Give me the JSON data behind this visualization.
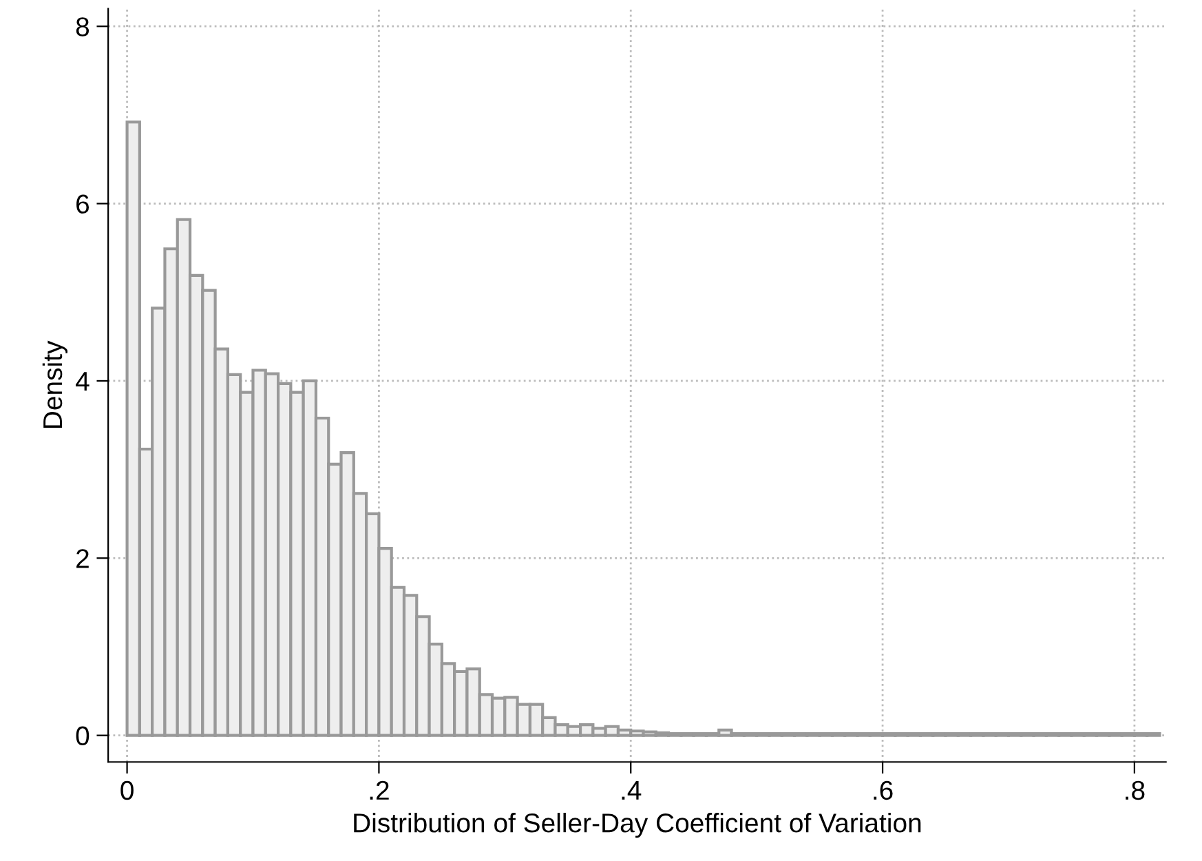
{
  "chart_data": {
    "type": "histogram",
    "xlabel": "Distribution of Seller-Day Coefficient of Variation",
    "ylabel": "Density",
    "bins": [
      0,
      0.01,
      0.02,
      0.03,
      0.04,
      0.05,
      0.06,
      0.07,
      0.08,
      0.09,
      0.1,
      0.11,
      0.12,
      0.13,
      0.14,
      0.15,
      0.16,
      0.17,
      0.18,
      0.19,
      0.2,
      0.21,
      0.22,
      0.23,
      0.24,
      0.25,
      0.26,
      0.27,
      0.28,
      0.29,
      0.3,
      0.31,
      0.32,
      0.33,
      0.34,
      0.35,
      0.36,
      0.37,
      0.38,
      0.39,
      0.4,
      0.41,
      0.42,
      0.43,
      0.44,
      0.45,
      0.46,
      0.47,
      0.48,
      0.49,
      0.5,
      0.51,
      0.52,
      0.53,
      0.54,
      0.55,
      0.56,
      0.57,
      0.58,
      0.59,
      0.6,
      0.61,
      0.62,
      0.63,
      0.64,
      0.65,
      0.66,
      0.67,
      0.68,
      0.69,
      0.7,
      0.71,
      0.72,
      0.73,
      0.74,
      0.75,
      0.76,
      0.77,
      0.78,
      0.79,
      0.8,
      0.81,
      0.82
    ],
    "values": [
      6.92,
      3.23,
      4.82,
      5.49,
      5.82,
      5.19,
      5.02,
      4.36,
      4.07,
      3.87,
      4.12,
      4.08,
      3.97,
      3.87,
      4.0,
      3.58,
      3.06,
      3.19,
      2.73,
      2.5,
      2.11,
      1.67,
      1.58,
      1.34,
      1.03,
      0.81,
      0.72,
      0.75,
      0.46,
      0.42,
      0.43,
      0.35,
      0.35,
      0.2,
      0.12,
      0.1,
      0.12,
      0.08,
      0.1,
      0.06,
      0.05,
      0.04,
      0.03,
      0.02,
      0.02,
      0.02,
      0.02,
      0.06,
      0.02,
      0.02,
      0.02,
      0.02,
      0.02,
      0.02,
      0.02,
      0.02,
      0.02,
      0.02,
      0.02,
      0.02,
      0.02,
      0.02,
      0.02,
      0.02,
      0.02,
      0.02,
      0.02,
      0.02,
      0.02,
      0.02,
      0.02,
      0.02,
      0.02,
      0.02,
      0.02,
      0.02,
      0.02,
      0.02,
      0.02,
      0.02,
      0.02,
      0.02
    ],
    "color": "#eeeeee",
    "xlim": [
      -0.015,
      0.825
    ],
    "ylim": [
      -0.3,
      8.2
    ],
    "xticks": [
      0,
      {
        "value": 0.2,
        "label": ".2"
      },
      {
        "value": 0.4,
        "label": ".4"
      },
      {
        "value": 0.6,
        "label": ".6"
      },
      {
        "value": 0.8,
        "label": ".8"
      }
    ],
    "yticks": [
      0,
      2,
      4,
      6,
      8
    ],
    "grid": true
  }
}
